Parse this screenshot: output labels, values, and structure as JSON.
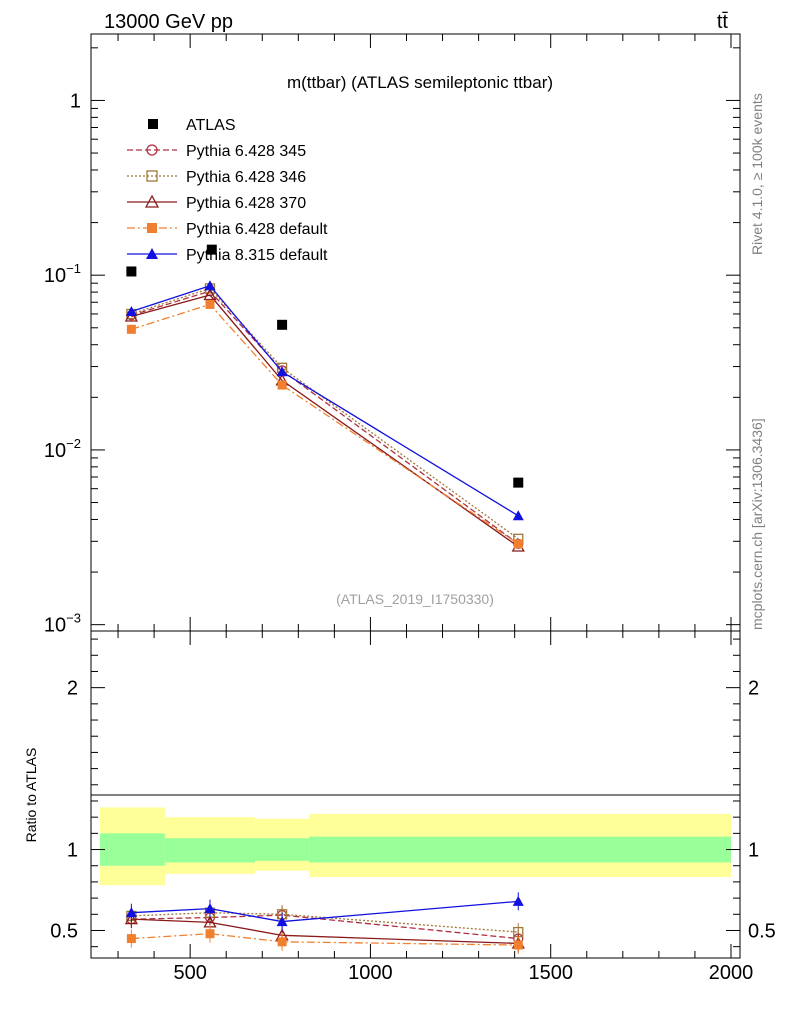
{
  "header": {
    "energy_label": "13000 GeV pp",
    "process_label": "tt̄",
    "side_label_top": "Rivet 4.1.0, ≥ 100k events",
    "side_label_bottom": "mcplots.cern.ch [arXiv:1306.3436]"
  },
  "chart_data": {
    "type": "line",
    "title": "m(ttbar) (ATLAS semileptonic ttbar)",
    "analysis_tag": "(ATLAS_2019_I1750330)",
    "xlabel": "",
    "xlim": [
      225,
      2025
    ],
    "x_ticks": [
      500,
      1000,
      1500,
      2000
    ],
    "x_tick_labels": [
      "500",
      "1000",
      "1500",
      "2000"
    ],
    "main": {
      "yscale": "log",
      "ylim": [
        0.00092,
        2.4
      ],
      "y_ticks": [
        0.001,
        0.01,
        0.1,
        1
      ],
      "y_tick_labels": [
        {
          "base": "10",
          "exp": "−3"
        },
        {
          "base": "10",
          "exp": "−2"
        },
        {
          "base": "10",
          "exp": "−1"
        },
        {
          "base": "1",
          "exp": ""
        }
      ]
    },
    "ratio": {
      "ylabel": "Ratio to ATLAS",
      "ylim": [
        0.33,
        2.35
      ],
      "y_ticks": [
        0.5,
        1,
        2
      ],
      "y_tick_labels": [
        "0.5",
        "1",
        "2"
      ],
      "bands": [
        {
          "x0": 250,
          "x1": 430,
          "inner": [
            0.9,
            1.1
          ],
          "outer": [
            0.78,
            1.26
          ]
        },
        {
          "x0": 430,
          "x1": 680,
          "inner": [
            0.92,
            1.07
          ],
          "outer": [
            0.85,
            1.2
          ]
        },
        {
          "x0": 680,
          "x1": 830,
          "inner": [
            0.93,
            1.07
          ],
          "outer": [
            0.87,
            1.19
          ]
        },
        {
          "x0": 830,
          "x1": 2000,
          "inner": [
            0.92,
            1.08
          ],
          "outer": [
            0.83,
            1.22
          ]
        }
      ]
    },
    "x": [
      337,
      555,
      755,
      1410
    ],
    "data": {
      "name": "ATLAS",
      "values": [
        0.105,
        0.14,
        0.052,
        0.0065
      ],
      "x_offsets": [
        0,
        5,
        0,
        0
      ]
    },
    "series": [
      {
        "name": "Pythia 6.428 345",
        "color": "#b03040",
        "dash": "6,3",
        "marker": "circle-open",
        "values": [
          0.059,
          0.081,
          0.0285,
          0.0029
        ],
        "ratio": [
          0.57,
          0.58,
          0.595,
          0.45
        ]
      },
      {
        "name": "Pythia 6.428 346",
        "color": "#a07838",
        "dash": "2,2",
        "marker": "square-open",
        "values": [
          0.06,
          0.084,
          0.0295,
          0.0031
        ],
        "ratio": [
          0.59,
          0.61,
          0.6,
          0.49
        ]
      },
      {
        "name": "Pythia 6.428 370",
        "color": "#8b1a1a",
        "dash": "",
        "marker": "triangle-open",
        "values": [
          0.058,
          0.077,
          0.025,
          0.0028
        ],
        "ratio": [
          0.57,
          0.55,
          0.47,
          0.42
        ]
      },
      {
        "name": "Pythia 6.428 default",
        "color": "#f08030",
        "dash": "8,3,2,3",
        "marker": "square-filled",
        "values": [
          0.049,
          0.068,
          0.0235,
          0.0029
        ],
        "ratio": [
          0.45,
          0.48,
          0.43,
          0.41
        ]
      },
      {
        "name": "Pythia 8.315 default",
        "color": "#1010e0",
        "dash": "",
        "marker": "triangle-filled",
        "values": [
          0.062,
          0.087,
          0.028,
          0.0042
        ],
        "ratio": [
          0.61,
          0.635,
          0.555,
          0.68
        ]
      }
    ]
  }
}
